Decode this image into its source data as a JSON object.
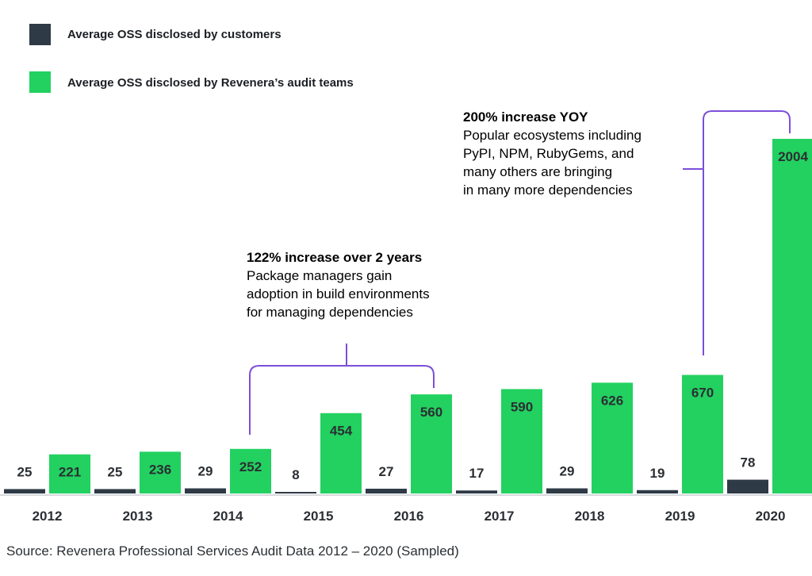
{
  "colors": {
    "customers": "#2e3a45",
    "audit": "#22d160",
    "bracket": "#7b4fd8",
    "axis": "#c9cdd1"
  },
  "legend": [
    {
      "label": "Average OSS disclosed by customers",
      "color_key": "customers"
    },
    {
      "label": "Average OSS disclosed by Revenera’s audit teams",
      "color_key": "audit"
    }
  ],
  "chart_data": {
    "type": "bar",
    "categories": [
      "2012",
      "2013",
      "2014",
      "2015",
      "2016",
      "2017",
      "2018",
      "2019",
      "2020"
    ],
    "series": [
      {
        "name": "Average OSS disclosed by customers",
        "values": [
          25,
          25,
          29,
          8,
          27,
          17,
          29,
          19,
          78
        ]
      },
      {
        "name": "Average OSS disclosed by Revenera’s audit teams",
        "values": [
          221,
          236,
          252,
          454,
          560,
          590,
          626,
          670,
          2004
        ]
      }
    ],
    "title": "",
    "xlabel": "",
    "ylabel": "",
    "ylim": [
      0,
      2004
    ],
    "grid": false,
    "legend_position": "top-left",
    "annotations": [
      {
        "heading": "122% increase over 2 years",
        "lines": [
          "Package managers gain",
          "adoption in build environments",
          "for managing dependencies"
        ]
      },
      {
        "heading": "200% increase YOY",
        "lines": [
          "Popular ecosystems including",
          "PyPI, NPM, RubyGems, and",
          "many others are bringing",
          "in many more dependencies"
        ]
      }
    ]
  },
  "source": "Source: Revenera Professional Services Audit Data 2012 – 2020 (Sampled)"
}
